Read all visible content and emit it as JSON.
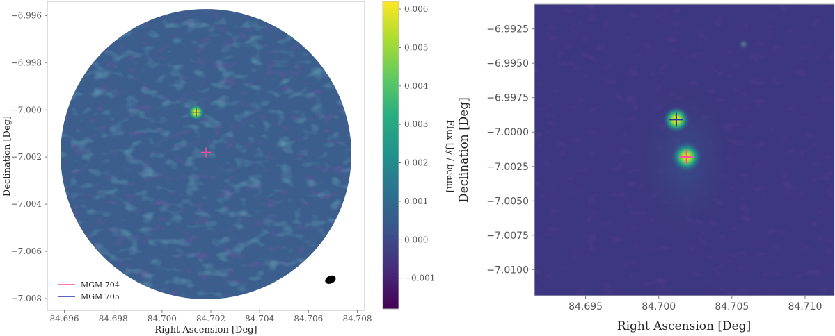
{
  "chart_data": [
    {
      "type": "heatmap",
      "title": "",
      "xlabel": "Right Ascension [Deg]",
      "ylabel": "Declination [Deg]",
      "xlim": [
        84.6953,
        84.7083
      ],
      "ylim": [
        -7.0085,
        -6.9954
      ],
      "x_ticks": [
        "84.696",
        "84.698",
        "84.700",
        "84.702",
        "84.704",
        "84.706",
        "84.708"
      ],
      "y_ticks": [
        "−6.996",
        "−6.998",
        "−7.000",
        "−7.002",
        "−7.004",
        "−7.006",
        "−7.008"
      ],
      "x_tick_values": [
        84.696,
        84.698,
        84.7,
        84.702,
        84.704,
        84.706,
        84.708
      ],
      "y_tick_values": [
        -6.996,
        -6.998,
        -7.0,
        -7.002,
        -7.004,
        -7.006,
        -7.008
      ],
      "grid": false,
      "colormap": "viridis",
      "field_of_view": "circular",
      "sources": [
        {
          "ra": 84.7014,
          "dec": -7.0001,
          "peak_flux": 0.006
        },
        {
          "ra": 84.7018,
          "dec": -7.0018,
          "peak_flux": 0.0
        }
      ],
      "markers": [
        {
          "label": "MGM 704",
          "ra": 84.7018,
          "dec": -7.0018,
          "color": "#ff4fa3"
        },
        {
          "label": "MGM 705",
          "ra": 84.7014,
          "dec": -7.0001,
          "color": "#2233aa"
        }
      ],
      "legend": {
        "placement": "lower-left",
        "entries": [
          {
            "label": "MGM 704",
            "color": "#ff4fa3"
          },
          {
            "label": "MGM 705",
            "color": "#2233aa"
          }
        ]
      },
      "beam": {
        "ra": 84.7069,
        "dec": -7.0072,
        "color": "#000000"
      },
      "colorbar": {
        "label": "Flux [Jy / beam]",
        "range": [
          -0.0018,
          0.0062
        ],
        "ticks": [
          "0.006",
          "0.005",
          "0.004",
          "0.003",
          "0.002",
          "0.001",
          "0.000",
          "−0.001"
        ],
        "tick_values": [
          0.006,
          0.005,
          0.004,
          0.003,
          0.002,
          0.001,
          0.0,
          -0.001
        ]
      }
    },
    {
      "type": "heatmap",
      "title": "",
      "xlabel": "Right Ascension [Deg]",
      "ylabel": "Declination [Deg]",
      "xlim": [
        84.6915,
        84.712
      ],
      "ylim": [
        -7.0119,
        -6.9907
      ],
      "x_ticks": [
        "84.695",
        "84.700",
        "84.705",
        "84.710"
      ],
      "y_ticks": [
        "−6.9925",
        "−6.9950",
        "−6.9975",
        "−7.0000",
        "−7.0025",
        "−7.0050",
        "−7.0075",
        "−7.0100"
      ],
      "x_tick_values": [
        84.695,
        84.7,
        84.705,
        84.71
      ],
      "y_tick_values": [
        -6.9925,
        -6.995,
        -6.9975,
        -7.0,
        -7.0025,
        -7.005,
        -7.0075,
        -7.01
      ],
      "grid": false,
      "colormap": "viridis",
      "sources": [
        {
          "ra": 84.7012,
          "dec": -6.9991,
          "intensity": 0.8
        },
        {
          "ra": 84.7019,
          "dec": -7.0018,
          "intensity": 1.0
        },
        {
          "ra": 84.7058,
          "dec": -6.9936,
          "intensity": 0.15
        }
      ],
      "markers": [
        {
          "label": "MGM 704",
          "ra": 84.7019,
          "dec": -7.0018,
          "color": "#ff4fa3"
        },
        {
          "label": "MGM 705",
          "ra": 84.7012,
          "dec": -6.9991,
          "color": "#2233aa"
        }
      ]
    }
  ]
}
